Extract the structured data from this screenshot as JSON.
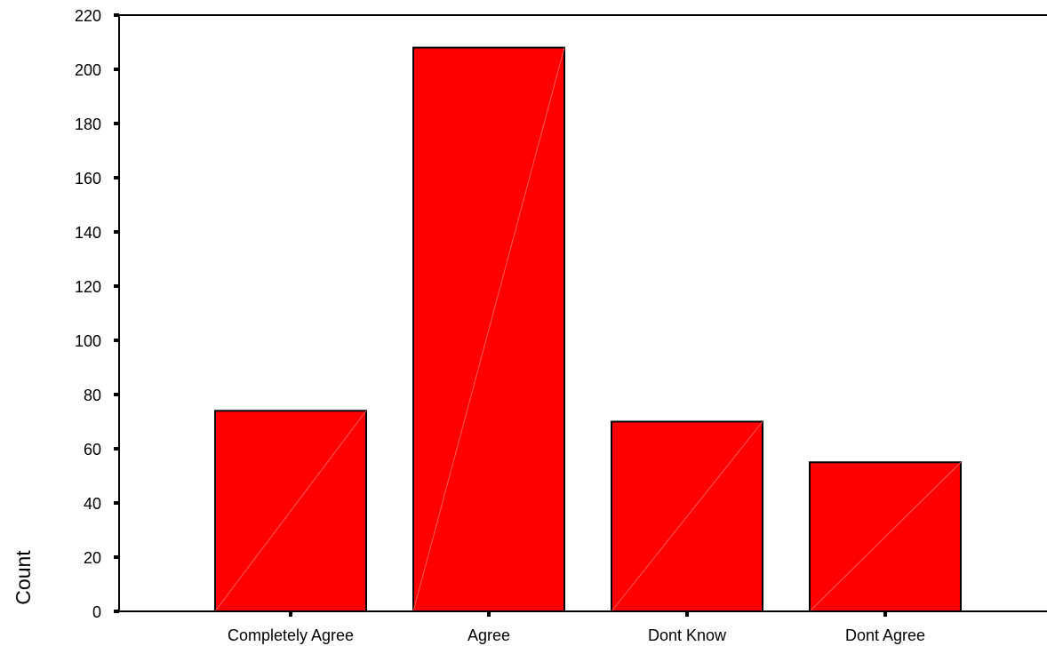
{
  "chart_data": {
    "type": "bar",
    "title": "",
    "xlabel": "",
    "ylabel": "Count",
    "categories": [
      "Completely Agree",
      "Agree",
      "Dont Know",
      "Dont Agree"
    ],
    "values": [
      74,
      208,
      70,
      55
    ],
    "ylim": [
      0,
      220
    ],
    "yticks": [
      "0",
      "20",
      "40",
      "60",
      "80",
      "100",
      "120",
      "140",
      "160",
      "180",
      "200",
      "220"
    ],
    "grid": false,
    "legend": "none",
    "bar_color": "#ff0000",
    "bar_outline_color": "#000000",
    "diagonal_line_color": "#ff5a5a"
  }
}
